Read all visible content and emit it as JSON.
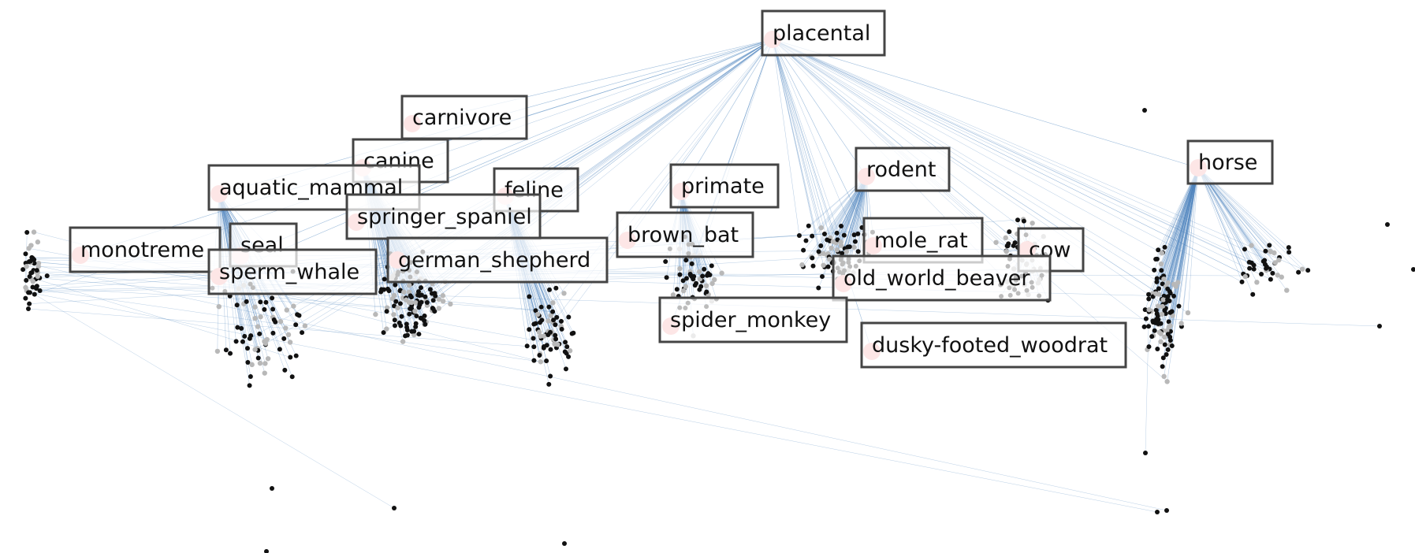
{
  "graph": {
    "colors": {
      "edge": "#4f86bf",
      "leaf_node": "#111111",
      "mid_node": "#b8b8b8",
      "highlight_node": "#f7a6a6",
      "label_border": "#444444",
      "label_fill": "#ffffff",
      "label_text": "#111111"
    },
    "labels": [
      {
        "id": "placental",
        "text": "placental"
      },
      {
        "id": "carnivore",
        "text": "carnivore"
      },
      {
        "id": "canine",
        "text": "canine"
      },
      {
        "id": "aquatic_mammal",
        "text": "aquatic_mammal"
      },
      {
        "id": "feline",
        "text": "feline"
      },
      {
        "id": "primate",
        "text": "primate"
      },
      {
        "id": "rodent",
        "text": "rodent"
      },
      {
        "id": "horse",
        "text": "horse"
      },
      {
        "id": "springer_spaniel",
        "text": "springer_spaniel"
      },
      {
        "id": "brown_bat",
        "text": "brown_bat"
      },
      {
        "id": "monotreme",
        "text": "monotreme"
      },
      {
        "id": "seal",
        "text": "seal"
      },
      {
        "id": "mole_rat",
        "text": "mole_rat"
      },
      {
        "id": "cow",
        "text": "cow"
      },
      {
        "id": "german_shepherd",
        "text": "german_shepherd"
      },
      {
        "id": "sperm_whale",
        "text": "sperm_whale"
      },
      {
        "id": "old_world_beaver",
        "text": "old_world_beaver"
      },
      {
        "id": "spider_monkey",
        "text": "spider_monkey"
      },
      {
        "id": "dusky_footed_woodrat",
        "text": "dusky-footed_woodrat"
      }
    ]
  }
}
